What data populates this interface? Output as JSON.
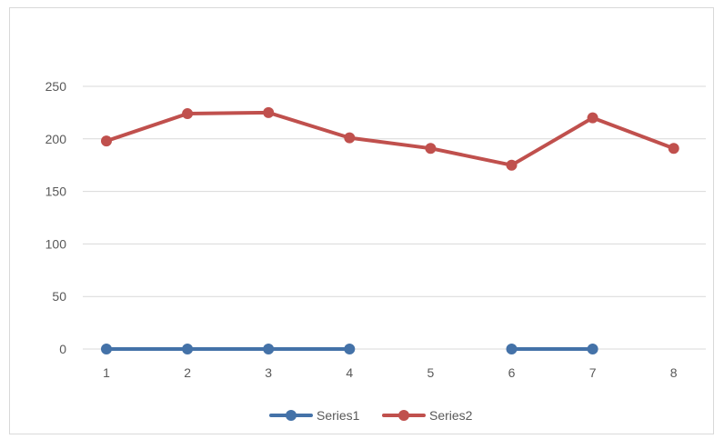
{
  "chart_data": {
    "type": "line",
    "title": "",
    "xlabel": "",
    "ylabel": "",
    "x": [
      "1",
      "2",
      "3",
      "4",
      "5",
      "6",
      "7",
      "8"
    ],
    "ylim": [
      0,
      250
    ],
    "yticks": [
      "0",
      "50",
      "100",
      "150",
      "200",
      "250"
    ],
    "grid": true,
    "legend_position": "bottom",
    "series": [
      {
        "name": "Series1",
        "color": "#4472a8",
        "values": [
          0,
          0,
          0,
          0,
          null,
          0,
          0,
          null
        ]
      },
      {
        "name": "Series2",
        "color": "#c0504d",
        "values": [
          198,
          224,
          225,
          201,
          191,
          175,
          220,
          191
        ]
      }
    ]
  }
}
